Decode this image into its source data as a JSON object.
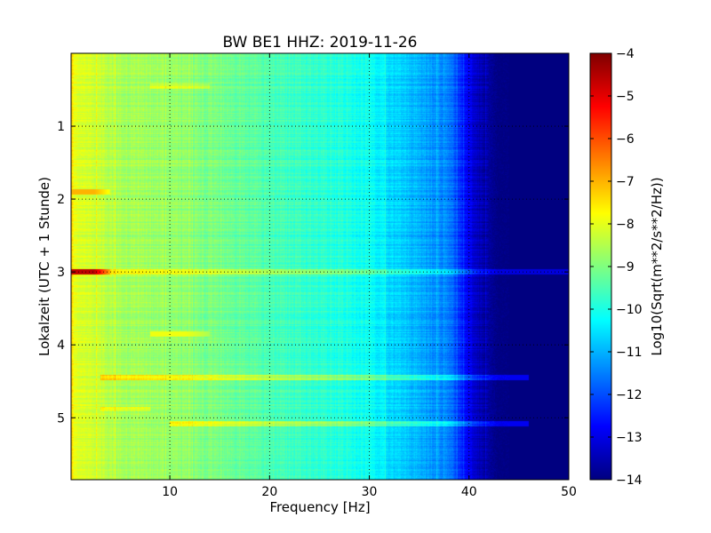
{
  "chart_data": {
    "type": "heatmap",
    "title": "BW BE1 HHZ: 2019-11-26",
    "xlabel": "Frequency [Hz]",
    "ylabel": "Lokalzeit (UTC + 1 Stunde)",
    "xlim": [
      0.1,
      50
    ],
    "ylim": [
      5.85,
      0.0
    ],
    "x_ticks": [
      10,
      20,
      30,
      40,
      50
    ],
    "x_tick_labels": [
      "10",
      "20",
      "30",
      "40",
      "50"
    ],
    "y_ticks": [
      1,
      2,
      3,
      4,
      5
    ],
    "y_tick_labels": [
      "1",
      "2",
      "3",
      "4",
      "5"
    ],
    "grid": true,
    "colormap": "jet",
    "colorbar": {
      "label": "Log10(Sqrt(m**2/s**2/Hz))",
      "range": [
        -14,
        -4
      ],
      "ticks": [
        -4,
        -5,
        -6,
        -7,
        -8,
        -9,
        -10,
        -11,
        -12,
        -13,
        -14
      ],
      "tick_labels": [
        "−4",
        "−5",
        "−6",
        "−7",
        "−8",
        "−9",
        "−10",
        "−11",
        "−12",
        "−13",
        "−14"
      ]
    },
    "frequency_profile": {
      "frequency_hz": [
        0.1,
        1,
        2,
        5,
        10,
        15,
        20,
        25,
        28,
        30,
        31,
        32,
        35,
        38,
        39,
        40,
        41,
        42,
        43,
        45,
        50
      ],
      "level": [
        -7.8,
        -8.0,
        -8.2,
        -8.6,
        -8.8,
        -9.1,
        -9.5,
        -9.8,
        -10.0,
        -10.2,
        -10.3,
        -10.6,
        -11.0,
        -11.5,
        -12.2,
        -12.9,
        -13.4,
        -13.7,
        -14.0,
        -14.0,
        -14.0
      ]
    },
    "horizontal_features": [
      {
        "time_h": 3.0,
        "f_start": 0.1,
        "f_end": 4.0,
        "level": -4.6
      },
      {
        "time_h": 3.0,
        "f_start": 4.0,
        "f_end": 50.0,
        "delta": 0.9
      },
      {
        "time_h": 1.9,
        "f_start": 0.1,
        "f_end": 4.0,
        "level": -7.0
      },
      {
        "time_h": 3.85,
        "f_start": 8.0,
        "f_end": 14.0,
        "level": -7.9
      },
      {
        "time_h": 4.45,
        "f_start": 3.0,
        "f_end": 46.0,
        "delta": 1.1
      },
      {
        "time_h": 5.08,
        "f_start": 10.0,
        "f_end": 46.0,
        "delta": 1.1
      },
      {
        "time_h": 0.45,
        "f_start": 8.0,
        "f_end": 14.0,
        "delta": 0.6
      },
      {
        "time_h": 4.88,
        "f_start": 3.0,
        "f_end": 8.0,
        "delta": 0.6
      }
    ]
  }
}
